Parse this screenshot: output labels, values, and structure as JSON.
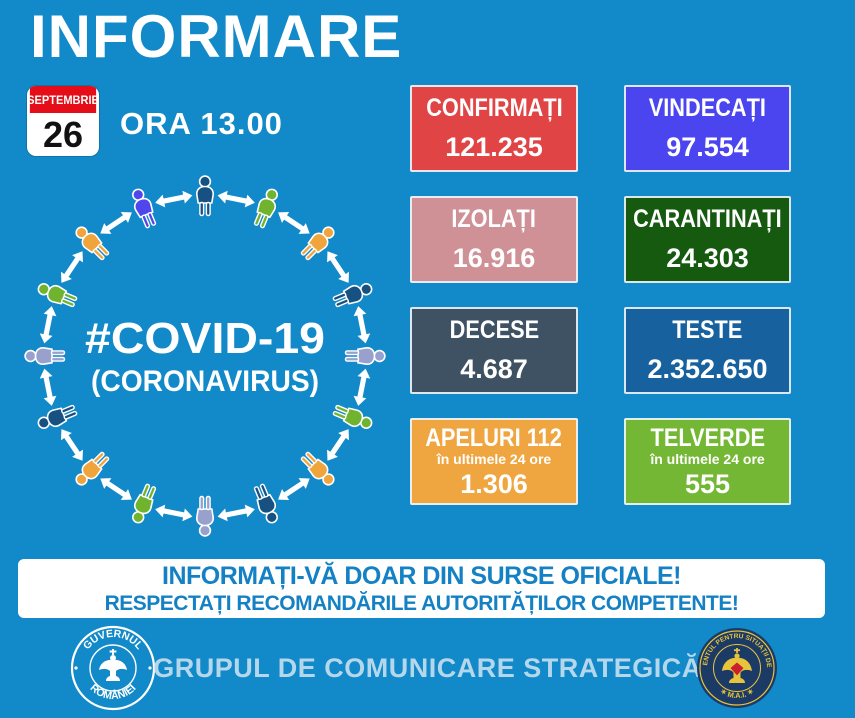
{
  "header": {
    "title": "INFORMARE",
    "date_month": "SEPTEMBRIE",
    "date_day": "26",
    "time_label": "ORA 13.00"
  },
  "diagram": {
    "hashtag": "#COVID-19",
    "subtitle": "(CORONAVIRUS)",
    "arrow_color": "#ffffff",
    "person_colors": [
      "#175181",
      "#6fb32e",
      "#f0a43c",
      "#175181",
      "#98a1cd",
      "#6fb32e",
      "#f0a43c",
      "#175181",
      "#98a1cd",
      "#6fb32e",
      "#f0a43c",
      "#175181",
      "#98a1cd",
      "#6fb32e",
      "#f0a43c",
      "#4f46ee"
    ]
  },
  "stats": [
    {
      "id": "confirmati",
      "label": "CONFIRMAȚI",
      "value": "121.235",
      "bg": "#e04444"
    },
    {
      "id": "vindecati",
      "label": "VINDECAȚI",
      "value": "97.554",
      "bg": "#4b45f0"
    },
    {
      "id": "izolati",
      "label": "IZOLAȚI",
      "value": "16.916",
      "bg": "#cf9196"
    },
    {
      "id": "carantinati",
      "label": "CARANTINAȚI",
      "value": "24.303",
      "bg": "#165a10"
    },
    {
      "id": "decese",
      "label": "DECESE",
      "value": "4.687",
      "bg": "#3e5263"
    },
    {
      "id": "teste",
      "label": "TESTE",
      "value": "2.352.650",
      "bg": "#17619f"
    },
    {
      "id": "apeluri-112",
      "label": "APELURI 112",
      "sub": "în ultimele 24 ore",
      "value": "1.306",
      "bg": "#f0a640"
    },
    {
      "id": "telverde",
      "label": "TELVERDE",
      "sub": "în ultimele 24 ore",
      "value": "555",
      "bg": "#74b734"
    }
  ],
  "notice": {
    "line1": "INFORMAȚI-VĂ DOAR DIN SURSE OFICIALE!",
    "line2": "RESPECTAȚI RECOMANDĂRILE AUTORITĂȚILOR COMPETENTE!"
  },
  "footer": {
    "text": "GRUPUL DE COMUNICARE STRATEGICĂ",
    "left_logo_top": "GUVERNUL",
    "left_logo_bottom": "ROMÂNIEI",
    "right_logo_around": "DEPARTAMENTUL PENTRU SITUAȚII DE URGENȚĂ",
    "right_logo_bottom": "✶ M.A.I. ✶"
  },
  "colors": {
    "background": "#1289c8",
    "calendar_red": "#e40d18",
    "notice_text": "#1481c4",
    "footer_text": "#b5d7ec",
    "seal_navy": "#1c3a66",
    "seal_gold": "#e8c43c",
    "seal_red": "#c8202c"
  }
}
